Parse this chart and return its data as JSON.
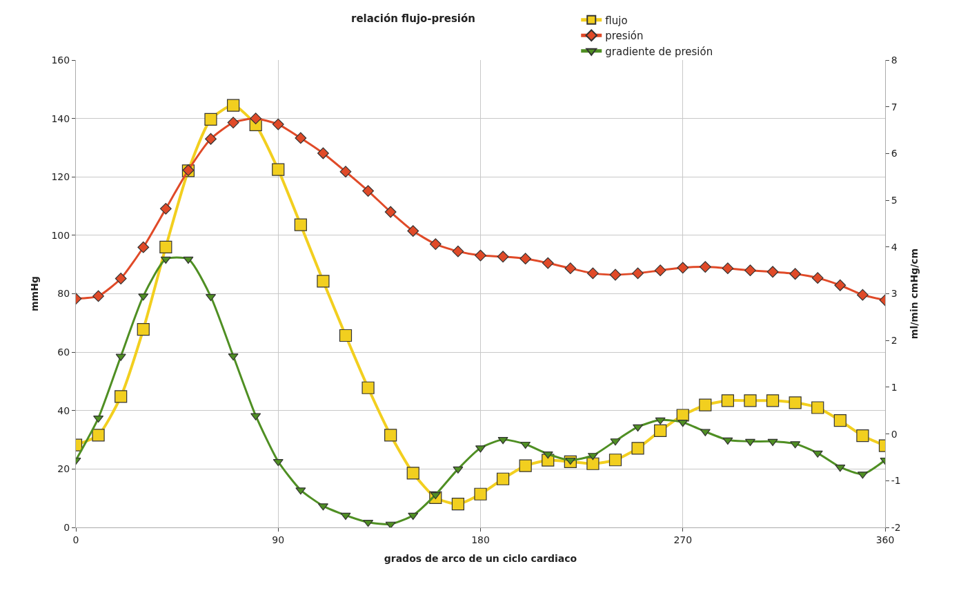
{
  "chart_data": {
    "type": "line",
    "title": "relación flujo-presión",
    "xlabel": "grados de arco de un ciclo cardiaco",
    "ylabel": "mmHg",
    "y2label": "ml/min cmHg/cm",
    "x": [
      0,
      10,
      20,
      30,
      40,
      50,
      60,
      70,
      80,
      90,
      100,
      110,
      120,
      130,
      140,
      150,
      160,
      170,
      180,
      190,
      200,
      210,
      220,
      230,
      240,
      250,
      260,
      270,
      280,
      290,
      300,
      310,
      320,
      330,
      340,
      350,
      360
    ],
    "series": [
      {
        "name": "flujo",
        "color": "#f2cf1f",
        "marker": "square",
        "values": [
          28.2,
          31.6,
          44.8,
          67.8,
          96.0,
          122.1,
          139.7,
          144.5,
          137.8,
          122.5,
          103.6,
          84.3,
          65.7,
          47.8,
          31.6,
          18.6,
          10.2,
          8.0,
          11.4,
          16.6,
          21.1,
          23.0,
          22.5,
          21.8,
          23.1,
          27.1,
          33.1,
          38.4,
          41.9,
          43.4,
          43.4,
          43.4,
          42.7,
          41.0,
          36.6,
          31.4,
          28.0
        ]
      },
      {
        "name": "presión",
        "color": "#e04a28",
        "marker": "diamond",
        "values": [
          78.3,
          79.2,
          85.2,
          95.9,
          109.1,
          122.3,
          133.0,
          138.6,
          140.0,
          138.0,
          133.3,
          128.1,
          121.8,
          115.2,
          108.0,
          101.5,
          97.0,
          94.5,
          93.1,
          92.7,
          92.0,
          90.5,
          88.7,
          87.0,
          86.5,
          87.0,
          88.0,
          88.9,
          89.2,
          88.7,
          88.0,
          87.5,
          86.8,
          85.4,
          82.9,
          79.6,
          77.8
        ]
      },
      {
        "name": "gradiente de presión",
        "color": "#4f8f23",
        "marker": "triangle",
        "axis": "y2",
        "values": [
          -0.56,
          0.34,
          1.66,
          2.95,
          3.74,
          3.74,
          2.94,
          1.67,
          0.39,
          -0.59,
          -1.2,
          -1.54,
          -1.74,
          -1.89,
          -1.93,
          -1.74,
          -1.3,
          -0.75,
          -0.3,
          -0.12,
          -0.22,
          -0.43,
          -0.56,
          -0.46,
          -0.15,
          0.15,
          0.3,
          0.25,
          0.05,
          -0.13,
          -0.16,
          -0.16,
          -0.21,
          -0.41,
          -0.71,
          -0.86,
          -0.56
        ]
      }
    ],
    "xlim": [
      0,
      360
    ],
    "xticks": [
      0,
      90,
      180,
      270,
      360
    ],
    "ylim": [
      0,
      160
    ],
    "yticks": [
      0,
      20,
      40,
      60,
      80,
      100,
      120,
      140,
      160
    ],
    "y2lim": [
      -2,
      8
    ],
    "y2ticks": [
      -2,
      -1,
      0,
      1,
      2,
      3,
      4,
      5,
      6,
      7,
      8
    ],
    "grid": true,
    "legend": "top right",
    "line_style": "solid"
  }
}
